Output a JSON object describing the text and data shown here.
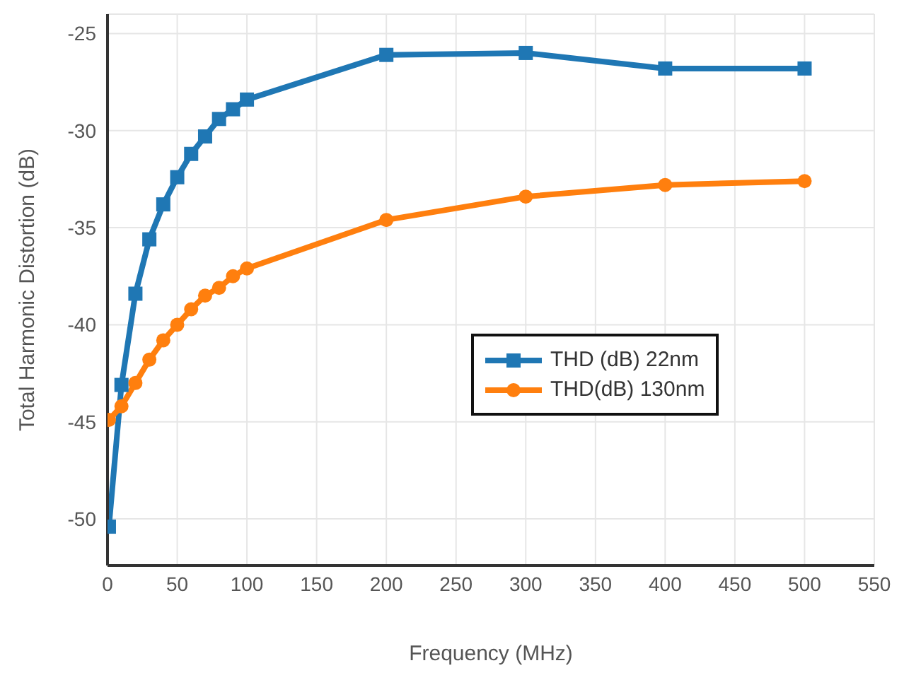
{
  "chart_data": {
    "type": "line",
    "xlabel": "Frequency (MHz)",
    "ylabel": "Total Harmonic Distortion (dB)",
    "xlim": [
      0,
      550
    ],
    "xticks": [
      0,
      50,
      100,
      150,
      200,
      250,
      300,
      350,
      400,
      450,
      500,
      550
    ],
    "ylim": [
      -52.4,
      -24
    ],
    "yticks": [
      -50,
      -45,
      -40,
      -35,
      -30,
      -25
    ],
    "grid": true,
    "legend": "right",
    "line_style": "solid",
    "x": [
      1,
      10,
      20,
      30,
      40,
      50,
      60,
      70,
      80,
      90,
      100,
      200,
      300,
      400,
      500
    ],
    "series": [
      {
        "name": "THD (dB) 22nm",
        "color": "#1f77b4",
        "marker": "square",
        "values": [
          -50.4,
          -43.1,
          -38.4,
          -35.6,
          -33.8,
          -32.4,
          -31.2,
          -30.3,
          -29.4,
          -28.9,
          -28.4,
          -26.1,
          -26.0,
          -26.8,
          -26.8
        ]
      },
      {
        "name": "THD(dB) 130nm",
        "color": "#ff7f0e",
        "marker": "circle",
        "values": [
          -44.9,
          -44.2,
          -43.0,
          -41.8,
          -40.8,
          -40.0,
          -39.2,
          -38.5,
          -38.1,
          -37.5,
          -37.1,
          -34.6,
          -33.4,
          -32.8,
          -32.6
        ]
      }
    ]
  }
}
